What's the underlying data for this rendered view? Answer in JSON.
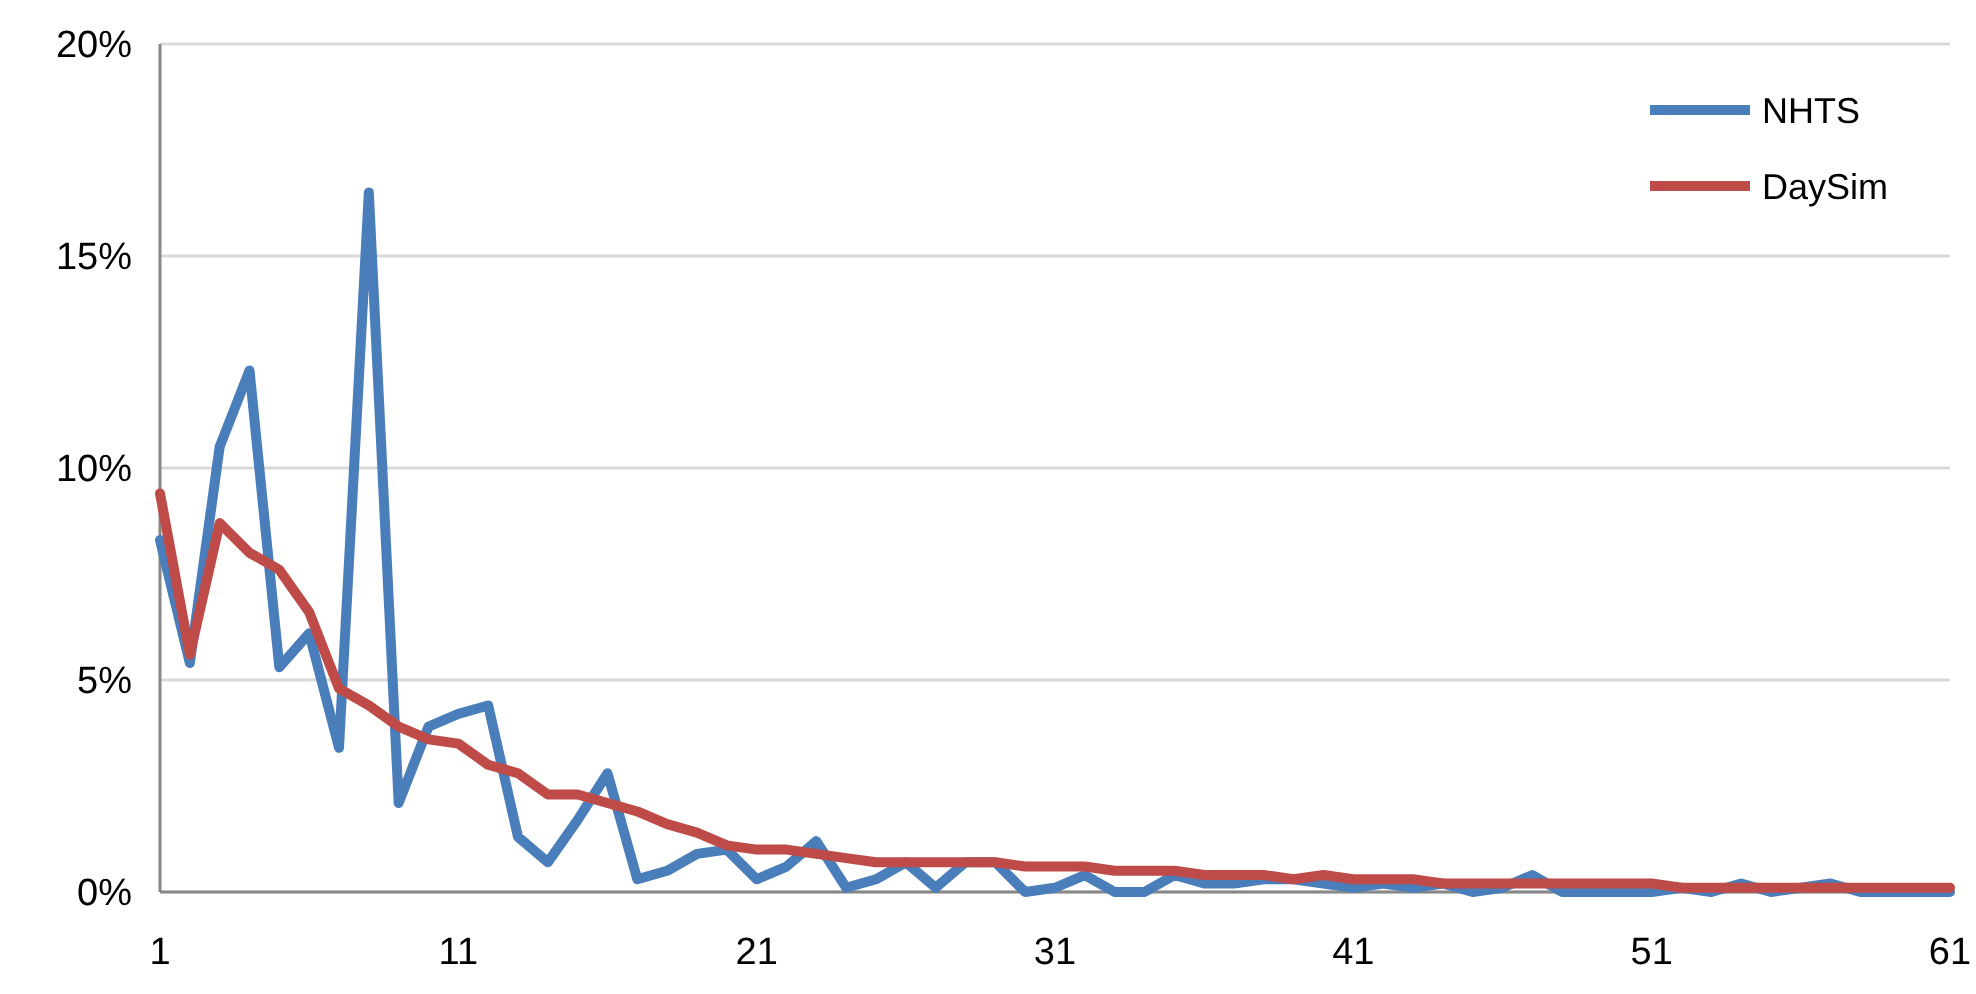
{
  "chart_data": {
    "type": "line",
    "x": [
      1,
      2,
      3,
      4,
      5,
      6,
      7,
      8,
      9,
      10,
      11,
      12,
      13,
      14,
      15,
      16,
      17,
      18,
      19,
      20,
      21,
      22,
      23,
      24,
      25,
      26,
      27,
      28,
      29,
      30,
      31,
      32,
      33,
      34,
      35,
      36,
      37,
      38,
      39,
      40,
      41,
      42,
      43,
      44,
      45,
      46,
      47,
      48,
      49,
      50,
      51,
      52,
      53,
      54,
      55,
      56,
      57,
      58,
      59,
      60,
      61
    ],
    "series": [
      {
        "name": "NHTS",
        "color": "#4a7ebb",
        "values": [
          8.3,
          5.4,
          10.5,
          12.3,
          5.3,
          6.1,
          3.4,
          16.5,
          2.1,
          3.9,
          4.2,
          4.4,
          1.3,
          0.7,
          1.7,
          2.8,
          0.3,
          0.5,
          0.9,
          1.0,
          0.3,
          0.6,
          1.2,
          0.1,
          0.3,
          0.7,
          0.1,
          0.7,
          0.7,
          0.0,
          0.1,
          0.4,
          0.0,
          0.0,
          0.4,
          0.2,
          0.2,
          0.3,
          0.3,
          0.2,
          0.1,
          0.2,
          0.1,
          0.2,
          0.0,
          0.1,
          0.4,
          0.0,
          0.0,
          0.0,
          0.0,
          0.1,
          0.0,
          0.2,
          0.0,
          0.1,
          0.2,
          0.0,
          0.0,
          0.0,
          0.0
        ]
      },
      {
        "name": "DaySim",
        "color": "#be4b48",
        "values": [
          9.4,
          5.6,
          8.7,
          8.0,
          7.6,
          6.6,
          4.8,
          4.4,
          3.9,
          3.6,
          3.5,
          3.0,
          2.8,
          2.3,
          2.3,
          2.1,
          1.9,
          1.6,
          1.4,
          1.1,
          1.0,
          1.0,
          0.9,
          0.8,
          0.7,
          0.7,
          0.7,
          0.7,
          0.7,
          0.6,
          0.6,
          0.6,
          0.5,
          0.5,
          0.5,
          0.4,
          0.4,
          0.4,
          0.3,
          0.4,
          0.3,
          0.3,
          0.3,
          0.2,
          0.2,
          0.2,
          0.2,
          0.2,
          0.2,
          0.2,
          0.2,
          0.1,
          0.1,
          0.1,
          0.1,
          0.1,
          0.1,
          0.1,
          0.1,
          0.1,
          0.1
        ]
      }
    ],
    "xlim": [
      1,
      61
    ],
    "xticks": [
      1,
      11,
      21,
      31,
      41,
      51,
      61
    ],
    "ylim": [
      0,
      20
    ],
    "yticks": [
      {
        "value": 0,
        "label": "0%"
      },
      {
        "value": 5,
        "label": "5%"
      },
      {
        "value": 10,
        "label": "10%"
      },
      {
        "value": 15,
        "label": "15%"
      },
      {
        "value": 20,
        "label": "20%"
      }
    ],
    "grid": "y",
    "legend": "top right",
    "line_style": "solid",
    "marker": "none"
  }
}
